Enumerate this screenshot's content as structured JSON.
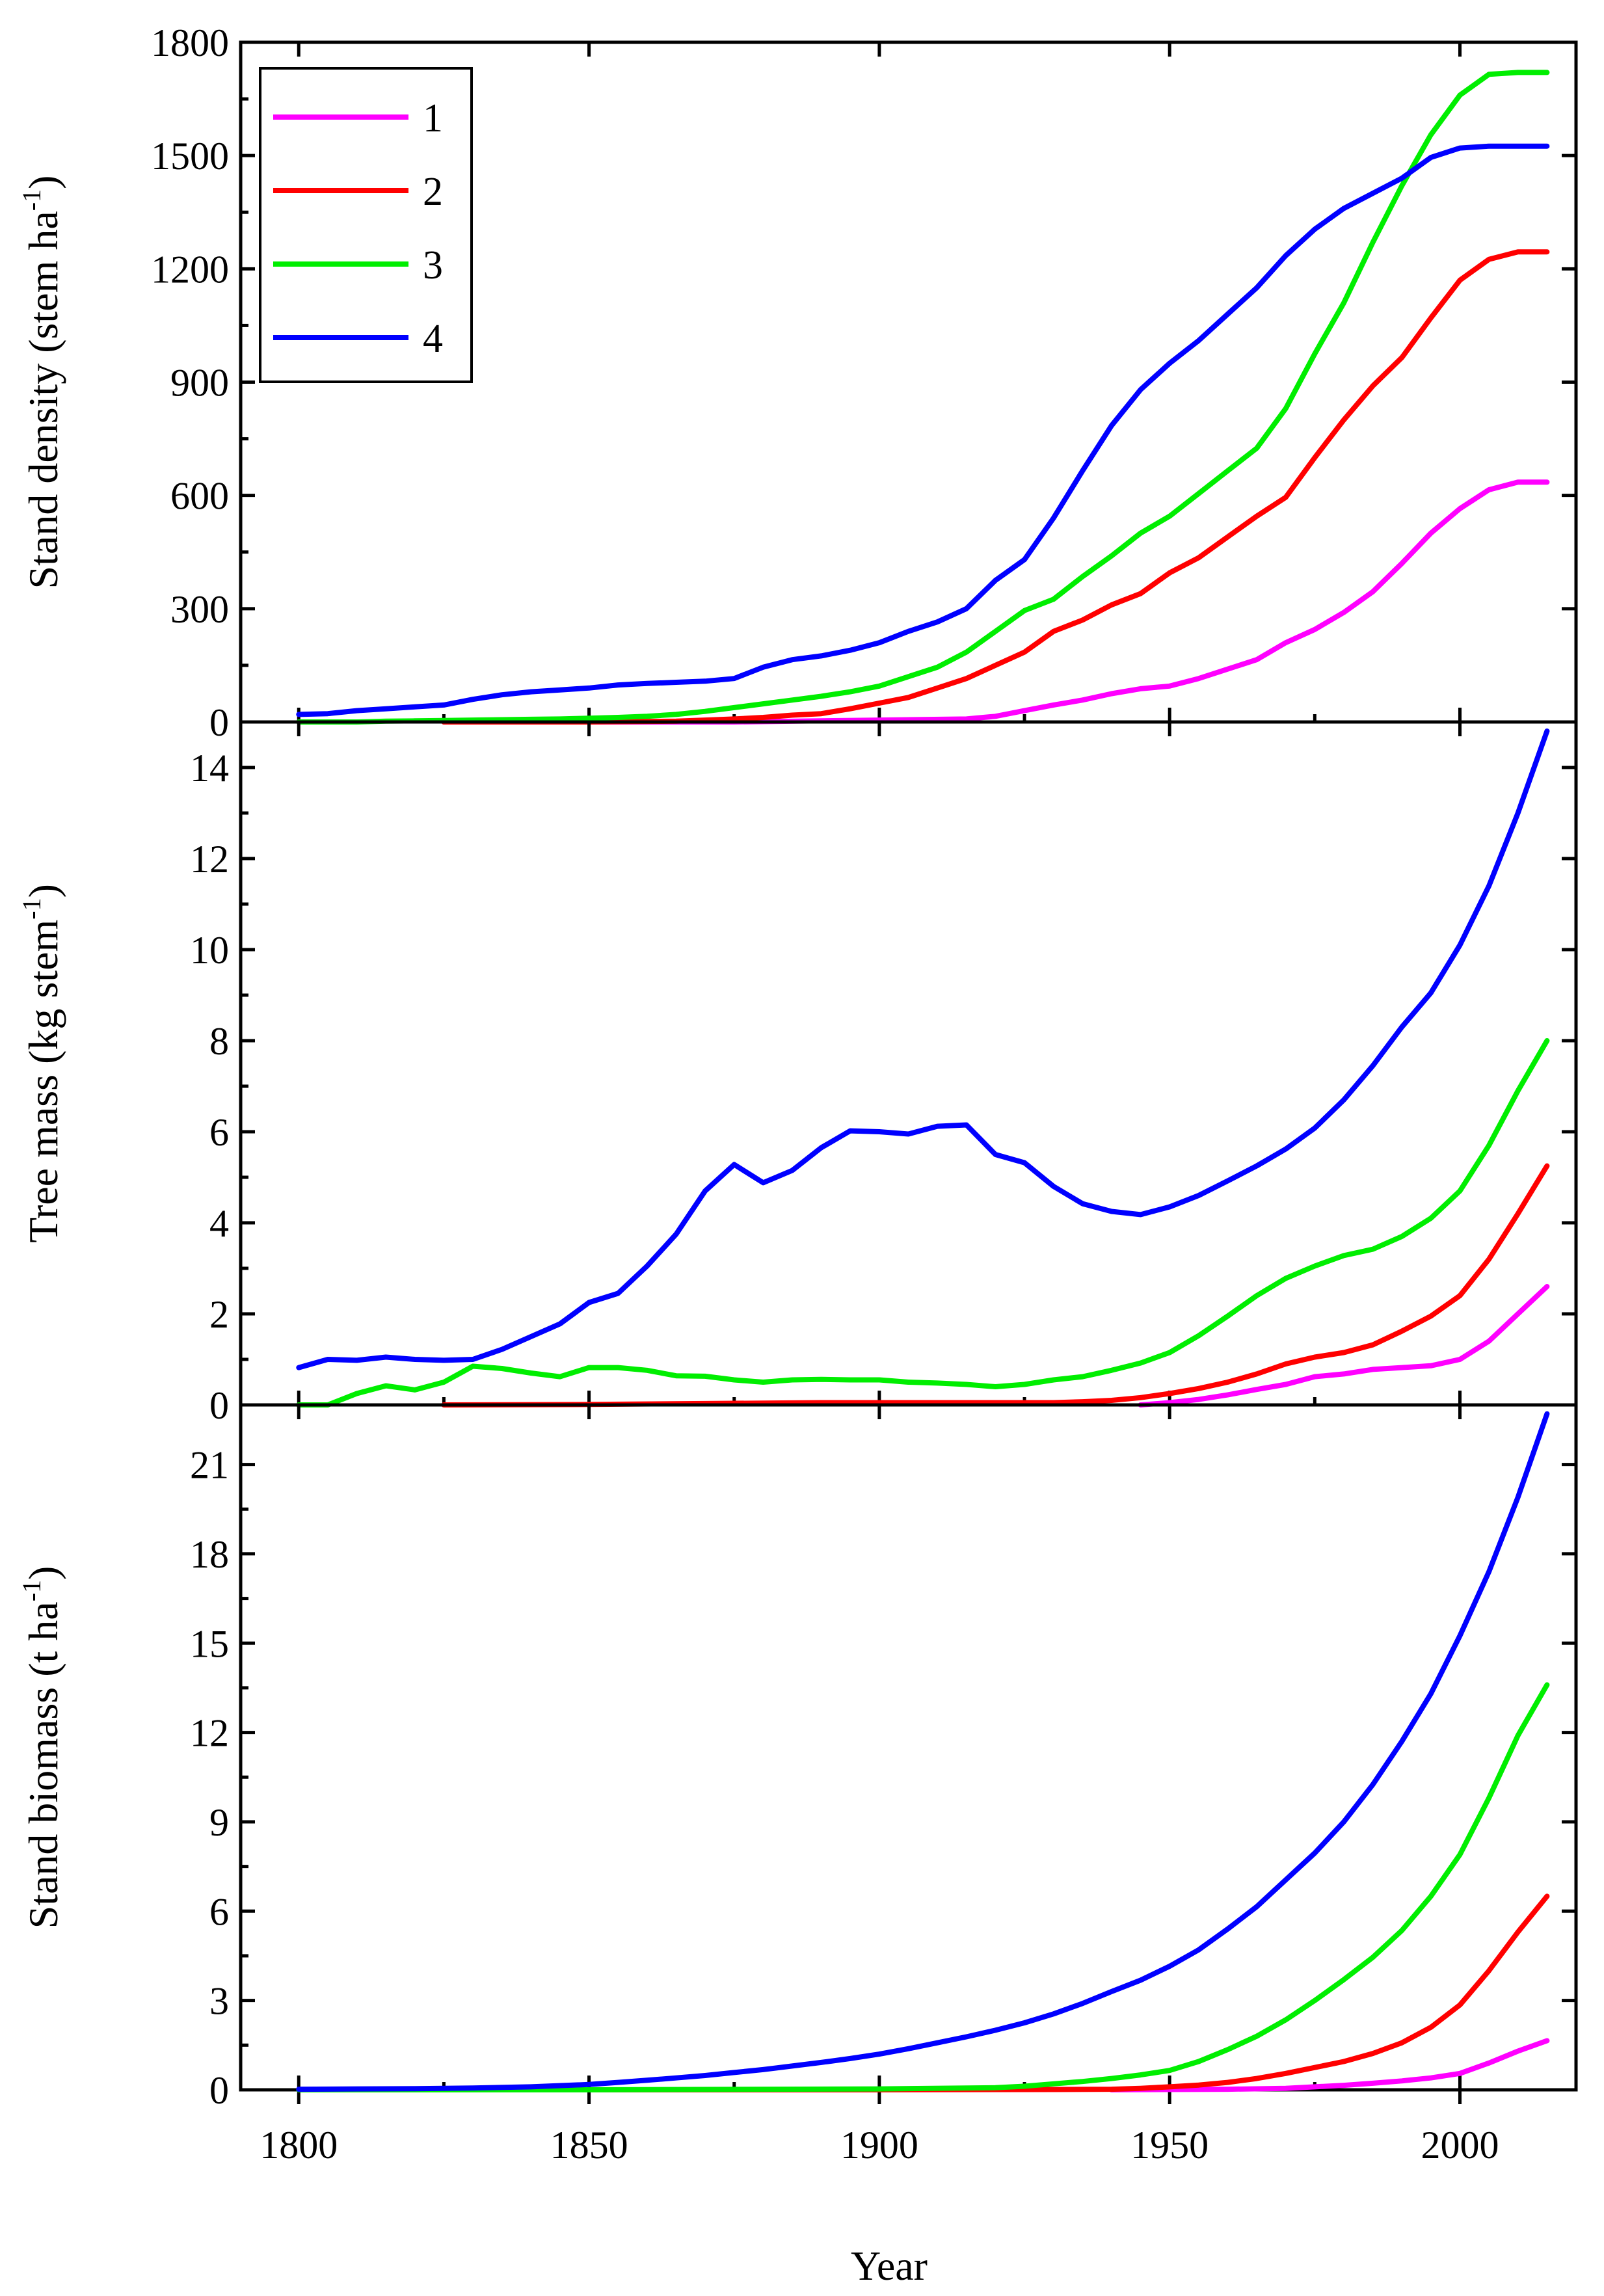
{
  "chart_data": [
    {
      "type": "line",
      "panel": "top",
      "ylabel": "Stand density (stem ha",
      "ylabel_sup": "-1",
      "ylabel_end": ")",
      "ylim": [
        0,
        1800
      ],
      "yticks": [
        0,
        300,
        600,
        900,
        1200,
        1500,
        1800
      ],
      "xlim": [
        1790,
        2020
      ],
      "legend": {
        "position": "top-left",
        "entries": [
          {
            "label": "1",
            "color": "#ff00ff"
          },
          {
            "label": "2",
            "color": "#ff0000"
          },
          {
            "label": "3",
            "color": "#00ee00"
          },
          {
            "label": "4",
            "color": "#0000ff"
          }
        ]
      },
      "series": [
        {
          "name": "1",
          "color": "#ff00ff",
          "x": [
            1825,
            1850,
            1875,
            1900,
            1915,
            1920,
            1925,
            1930,
            1935,
            1940,
            1945,
            1950,
            1955,
            1960,
            1965,
            1970,
            1975,
            1980,
            1985,
            1990,
            1995,
            2000,
            2005,
            2010,
            2015
          ],
          "y": [
            0,
            0,
            0,
            5,
            8,
            15,
            30,
            45,
            58,
            75,
            88,
            95,
            115,
            140,
            165,
            210,
            245,
            290,
            345,
            420,
            500,
            565,
            615,
            635,
            635
          ]
        },
        {
          "name": "2",
          "color": "#ff0000",
          "x": [
            1825,
            1850,
            1865,
            1870,
            1875,
            1880,
            1885,
            1890,
            1895,
            1900,
            1905,
            1910,
            1915,
            1920,
            1925,
            1930,
            1935,
            1940,
            1945,
            1950,
            1955,
            1960,
            1965,
            1970,
            1975,
            1980,
            1985,
            1990,
            1995,
            2000,
            2005,
            2010,
            2015
          ],
          "y": [
            0,
            0,
            2,
            5,
            8,
            12,
            18,
            22,
            35,
            50,
            65,
            90,
            115,
            150,
            185,
            240,
            270,
            310,
            340,
            395,
            435,
            490,
            545,
            595,
            700,
            800,
            890,
            965,
            1070,
            1170,
            1225,
            1245,
            1245
          ]
        },
        {
          "name": "3",
          "color": "#00ee00",
          "x": [
            1800,
            1805,
            1810,
            1815,
            1820,
            1825,
            1830,
            1835,
            1840,
            1845,
            1850,
            1855,
            1860,
            1865,
            1870,
            1875,
            1880,
            1885,
            1890,
            1895,
            1900,
            1905,
            1910,
            1915,
            1920,
            1925,
            1930,
            1935,
            1940,
            1945,
            1950,
            1955,
            1960,
            1965,
            1970,
            1975,
            1980,
            1985,
            1990,
            1995,
            2000,
            2005,
            2010,
            2015
          ],
          "y": [
            0,
            0,
            0,
            2,
            3,
            4,
            5,
            6,
            7,
            8,
            10,
            12,
            15,
            20,
            28,
            38,
            48,
            58,
            68,
            80,
            95,
            120,
            145,
            185,
            240,
            295,
            325,
            385,
            440,
            500,
            545,
            605,
            665,
            725,
            830,
            975,
            1110,
            1270,
            1420,
            1555,
            1660,
            1715,
            1720,
            1720
          ]
        },
        {
          "name": "4",
          "color": "#0000ff",
          "x": [
            1800,
            1805,
            1810,
            1815,
            1820,
            1825,
            1830,
            1835,
            1840,
            1845,
            1850,
            1855,
            1860,
            1865,
            1870,
            1875,
            1880,
            1885,
            1890,
            1895,
            1900,
            1905,
            1910,
            1915,
            1920,
            1925,
            1930,
            1935,
            1940,
            1945,
            1950,
            1955,
            1960,
            1965,
            1970,
            1975,
            1980,
            1985,
            1990,
            1995,
            2000,
            2005,
            2010,
            2015
          ],
          "y": [
            20,
            22,
            30,
            35,
            40,
            45,
            60,
            72,
            80,
            85,
            90,
            98,
            102,
            105,
            108,
            115,
            145,
            165,
            175,
            190,
            210,
            240,
            265,
            300,
            375,
            430,
            540,
            665,
            785,
            880,
            950,
            1010,
            1080,
            1150,
            1235,
            1305,
            1360,
            1400,
            1440,
            1495,
            1520,
            1525,
            1525,
            1525
          ]
        }
      ]
    },
    {
      "type": "line",
      "panel": "middle",
      "ylabel": "Tree mass (kg stem",
      "ylabel_sup": "-1",
      "ylabel_end": ")",
      "ylim": [
        0,
        15
      ],
      "yticks": [
        0,
        2,
        4,
        6,
        8,
        10,
        12,
        14
      ],
      "xlim": [
        1790,
        2020
      ],
      "series": [
        {
          "name": "1",
          "color": "#ff00ff",
          "x": [
            1945,
            1950,
            1955,
            1960,
            1965,
            1970,
            1975,
            1980,
            1985,
            1990,
            1995,
            2000,
            2005,
            2010,
            2015
          ],
          "y": [
            0,
            0.05,
            0.12,
            0.22,
            0.34,
            0.45,
            0.62,
            0.68,
            0.78,
            0.82,
            0.86,
            1.0,
            1.4,
            2.0,
            2.6
          ]
        },
        {
          "name": "2",
          "color": "#ff0000",
          "x": [
            1825,
            1850,
            1870,
            1890,
            1900,
            1910,
            1920,
            1930,
            1935,
            1940,
            1945,
            1950,
            1955,
            1960,
            1965,
            1970,
            1975,
            1980,
            1985,
            1990,
            1995,
            2000,
            2005,
            2010,
            2015
          ],
          "y": [
            0,
            0.01,
            0.03,
            0.05,
            0.05,
            0.05,
            0.05,
            0.05,
            0.07,
            0.1,
            0.16,
            0.25,
            0.36,
            0.5,
            0.68,
            0.9,
            1.05,
            1.15,
            1.32,
            1.62,
            1.95,
            2.4,
            3.2,
            4.2,
            5.25
          ]
        },
        {
          "name": "3",
          "color": "#00ee00",
          "x": [
            1800,
            1805,
            1810,
            1815,
            1820,
            1825,
            1830,
            1835,
            1840,
            1845,
            1850,
            1855,
            1860,
            1865,
            1870,
            1875,
            1880,
            1885,
            1890,
            1895,
            1900,
            1905,
            1910,
            1915,
            1920,
            1925,
            1930,
            1935,
            1940,
            1945,
            1950,
            1955,
            1960,
            1965,
            1970,
            1975,
            1980,
            1985,
            1990,
            1995,
            2000,
            2005,
            2010,
            2015
          ],
          "y": [
            0,
            0,
            0.25,
            0.42,
            0.33,
            0.5,
            0.85,
            0.8,
            0.7,
            0.62,
            0.82,
            0.82,
            0.76,
            0.64,
            0.63,
            0.55,
            0.5,
            0.55,
            0.56,
            0.55,
            0.55,
            0.5,
            0.48,
            0.45,
            0.4,
            0.45,
            0.55,
            0.62,
            0.76,
            0.92,
            1.15,
            1.52,
            1.95,
            2.4,
            2.78,
            3.05,
            3.28,
            3.42,
            3.7,
            4.1,
            4.7,
            5.7,
            6.9,
            8.0
          ]
        },
        {
          "name": "4",
          "color": "#0000ff",
          "x": [
            1800,
            1805,
            1810,
            1815,
            1820,
            1825,
            1830,
            1835,
            1840,
            1845,
            1850,
            1855,
            1860,
            1865,
            1870,
            1875,
            1880,
            1885,
            1890,
            1895,
            1900,
            1905,
            1910,
            1915,
            1920,
            1925,
            1930,
            1935,
            1940,
            1945,
            1950,
            1955,
            1960,
            1965,
            1970,
            1975,
            1980,
            1985,
            1990,
            1995,
            2000,
            2005,
            2010,
            2015
          ],
          "y": [
            0.82,
            1.0,
            0.98,
            1.05,
            1.0,
            0.98,
            1.0,
            1.22,
            1.5,
            1.78,
            2.25,
            2.45,
            3.05,
            3.75,
            4.7,
            5.28,
            4.88,
            5.15,
            5.65,
            6.02,
            6.0,
            5.95,
            6.12,
            6.15,
            5.5,
            5.32,
            4.8,
            4.42,
            4.25,
            4.18,
            4.35,
            4.6,
            4.92,
            5.25,
            5.62,
            6.08,
            6.7,
            7.45,
            8.3,
            9.05,
            10.1,
            11.4,
            13.0,
            14.8
          ]
        }
      ]
    },
    {
      "type": "line",
      "panel": "bottom",
      "ylabel": "Stand biomass (t ha",
      "ylabel_sup": "-1",
      "ylabel_end": ")",
      "ylim": [
        0,
        23
      ],
      "yticks": [
        0,
        3,
        6,
        9,
        12,
        15,
        18,
        21
      ],
      "xlabel": "Year",
      "xlim": [
        1790,
        2020
      ],
      "xticks": [
        1800,
        1850,
        1900,
        1950,
        2000
      ],
      "series": [
        {
          "name": "1",
          "color": "#ff00ff",
          "x": [
            1940,
            1950,
            1960,
            1970,
            1975,
            1980,
            1985,
            1990,
            1995,
            2000,
            2005,
            2010,
            2015
          ],
          "y": [
            0,
            0.01,
            0.02,
            0.05,
            0.1,
            0.15,
            0.22,
            0.3,
            0.4,
            0.55,
            0.9,
            1.3,
            1.65
          ]
        },
        {
          "name": "2",
          "color": "#ff0000",
          "x": [
            1825,
            1900,
            1930,
            1940,
            1945,
            1950,
            1955,
            1960,
            1965,
            1970,
            1975,
            1980,
            1985,
            1990,
            1995,
            2000,
            2005,
            2010,
            2015
          ],
          "y": [
            0,
            0,
            0.01,
            0.02,
            0.05,
            0.1,
            0.16,
            0.25,
            0.38,
            0.55,
            0.75,
            0.95,
            1.22,
            1.58,
            2.1,
            2.85,
            4.0,
            5.3,
            6.5
          ]
        },
        {
          "name": "3",
          "color": "#00ee00",
          "x": [
            1800,
            1850,
            1900,
            1920,
            1925,
            1930,
            1935,
            1940,
            1945,
            1950,
            1955,
            1960,
            1965,
            1970,
            1975,
            1980,
            1985,
            1990,
            1995,
            2000,
            2005,
            2010,
            2015
          ],
          "y": [
            0,
            0,
            0.03,
            0.07,
            0.12,
            0.2,
            0.28,
            0.38,
            0.5,
            0.65,
            0.95,
            1.35,
            1.8,
            2.35,
            3.0,
            3.7,
            4.45,
            5.35,
            6.5,
            7.9,
            9.8,
            11.9,
            13.6
          ]
        },
        {
          "name": "4",
          "color": "#0000ff",
          "x": [
            1800,
            1810,
            1820,
            1830,
            1840,
            1850,
            1855,
            1860,
            1865,
            1870,
            1875,
            1880,
            1885,
            1890,
            1895,
            1900,
            1905,
            1910,
            1915,
            1920,
            1925,
            1930,
            1935,
            1940,
            1945,
            1950,
            1955,
            1960,
            1965,
            1970,
            1975,
            1980,
            1985,
            1990,
            1995,
            2000,
            2005,
            2010,
            2015
          ],
          "y": [
            0.02,
            0.03,
            0.04,
            0.06,
            0.1,
            0.18,
            0.25,
            0.32,
            0.4,
            0.48,
            0.58,
            0.68,
            0.8,
            0.92,
            1.05,
            1.2,
            1.38,
            1.58,
            1.78,
            2.0,
            2.25,
            2.55,
            2.9,
            3.3,
            3.68,
            4.15,
            4.7,
            5.4,
            6.15,
            7.05,
            7.95,
            9.0,
            10.25,
            11.7,
            13.3,
            15.25,
            17.4,
            19.9,
            22.7
          ]
        }
      ]
    }
  ]
}
